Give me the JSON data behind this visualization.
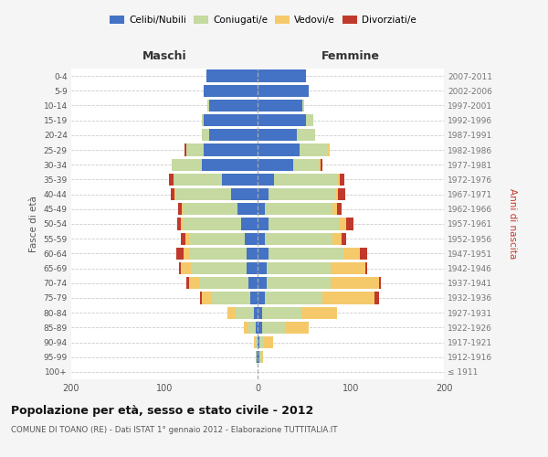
{
  "age_groups": [
    "100+",
    "95-99",
    "90-94",
    "85-89",
    "80-84",
    "75-79",
    "70-74",
    "65-69",
    "60-64",
    "55-59",
    "50-54",
    "45-49",
    "40-44",
    "35-39",
    "30-34",
    "25-29",
    "20-24",
    "15-19",
    "10-14",
    "5-9",
    "0-4"
  ],
  "birth_years": [
    "≤ 1911",
    "1912-1916",
    "1917-1921",
    "1922-1926",
    "1927-1931",
    "1932-1936",
    "1937-1941",
    "1942-1946",
    "1947-1951",
    "1952-1956",
    "1957-1961",
    "1962-1966",
    "1967-1971",
    "1972-1976",
    "1977-1981",
    "1982-1986",
    "1987-1991",
    "1992-1996",
    "1997-2001",
    "2002-2006",
    "2007-2011"
  ],
  "male": {
    "celibe": [
      0,
      1,
      0,
      2,
      4,
      8,
      10,
      12,
      12,
      14,
      18,
      22,
      28,
      38,
      60,
      58,
      52,
      58,
      52,
      58,
      55
    ],
    "coniugato": [
      0,
      1,
      2,
      8,
      20,
      42,
      52,
      60,
      62,
      60,
      62,
      58,
      60,
      52,
      32,
      18,
      8,
      2,
      2,
      0,
      0
    ],
    "vedovo": [
      0,
      0,
      2,
      5,
      8,
      10,
      12,
      10,
      5,
      3,
      2,
      1,
      1,
      0,
      0,
      0,
      0,
      0,
      0,
      0,
      0
    ],
    "divorziato": [
      0,
      0,
      0,
      0,
      0,
      2,
      2,
      2,
      8,
      5,
      4,
      4,
      4,
      5,
      0,
      2,
      0,
      0,
      0,
      0,
      0
    ]
  },
  "female": {
    "nubile": [
      0,
      2,
      2,
      5,
      5,
      8,
      10,
      10,
      12,
      8,
      12,
      8,
      12,
      18,
      38,
      45,
      42,
      52,
      48,
      55,
      52
    ],
    "coniugata": [
      0,
      2,
      5,
      25,
      42,
      62,
      68,
      68,
      80,
      72,
      75,
      72,
      72,
      68,
      28,
      30,
      20,
      8,
      2,
      0,
      0
    ],
    "vedova": [
      0,
      2,
      10,
      25,
      38,
      55,
      52,
      38,
      18,
      10,
      8,
      5,
      2,
      2,
      2,
      2,
      0,
      0,
      0,
      0,
      0
    ],
    "divorziata": [
      0,
      0,
      0,
      0,
      0,
      5,
      2,
      2,
      8,
      5,
      8,
      5,
      8,
      5,
      2,
      0,
      0,
      0,
      0,
      0,
      0
    ]
  },
  "colors": {
    "celibe": "#4472C4",
    "coniugato": "#C5D9A0",
    "vedovo": "#F5C96A",
    "divorziato": "#C0392B"
  },
  "xlim": 200,
  "title": "Popolazione per età, sesso e stato civile - 2012",
  "subtitle": "COMUNE DI TOANO (RE) - Dati ISTAT 1° gennaio 2012 - Elaborazione TUTTITALIA.IT",
  "xlabel_left": "Maschi",
  "xlabel_right": "Femmine",
  "ylabel_left": "Fasce di età",
  "ylabel_right": "Anni di nascita",
  "bg_color": "#F5F5F5",
  "plot_bg_color": "#FFFFFF",
  "legend_labels": [
    "Celibi/Nubili",
    "Coniugati/e",
    "Vedovi/e",
    "Divorziati/e"
  ]
}
